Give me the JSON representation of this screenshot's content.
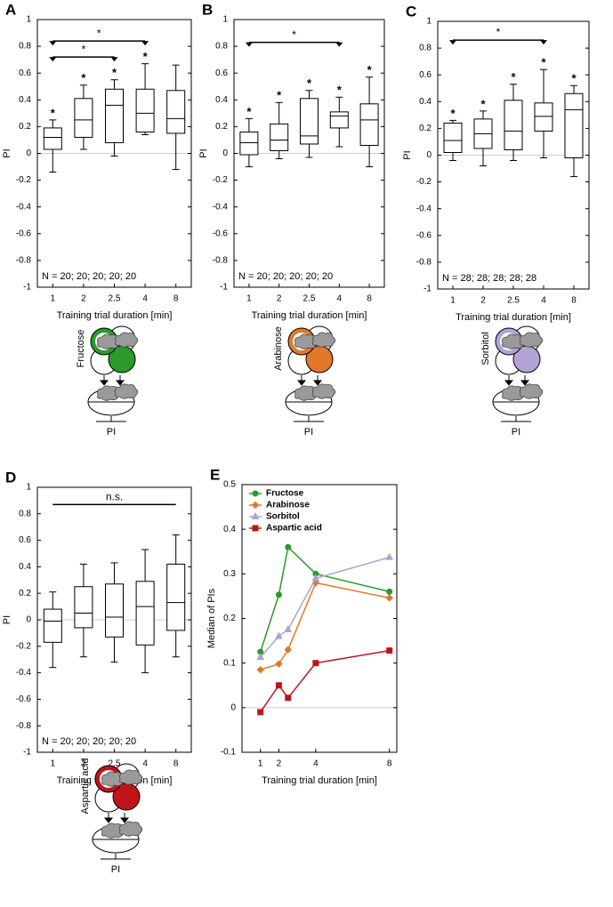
{
  "chart_data": [
    {
      "type": "box",
      "panel_label": "A",
      "ylabel": "PI",
      "xlabel": "Training trial duration [min]",
      "note": "N = 20; 20; 20; 20; 20",
      "categories": [
        "1",
        "2",
        "2.5",
        "4",
        "8"
      ],
      "boxes": [
        {
          "whislo": -0.14,
          "q1": 0.03,
          "med": 0.12,
          "q3": 0.19,
          "whishi": 0.25
        },
        {
          "whislo": 0.03,
          "q1": 0.12,
          "med": 0.25,
          "q3": 0.41,
          "whishi": 0.51
        },
        {
          "whislo": -0.02,
          "q1": 0.08,
          "med": 0.36,
          "q3": 0.48,
          "whishi": 0.55
        },
        {
          "whislo": 0.14,
          "q1": 0.16,
          "med": 0.3,
          "q3": 0.48,
          "whishi": 0.67
        },
        {
          "whislo": -0.12,
          "q1": 0.15,
          "med": 0.26,
          "q3": 0.47,
          "whishi": 0.66
        }
      ],
      "box_labels": [
        "*",
        "*",
        "*",
        "*",
        null
      ],
      "brackets": [
        {
          "from": 0,
          "to": 3,
          "y": 0.84,
          "label": "*"
        },
        {
          "from": 0,
          "to": 2,
          "y": 0.72,
          "label": "*"
        }
      ],
      "ylim": [
        -1,
        1
      ],
      "yticks": [
        -1,
        -0.8,
        -0.6,
        -0.4,
        -0.2,
        0,
        0.2,
        0.4,
        0.6,
        0.8,
        1
      ],
      "zero_line": true,
      "icon_label": "Fructose",
      "icon_caption": "PI",
      "icon_color": "#2a9a2a"
    },
    {
      "type": "box",
      "panel_label": "B",
      "ylabel": "PI",
      "xlabel": "Training trial duration [min]",
      "note": "N = 20; 20; 20; 20; 20",
      "categories": [
        "1",
        "2",
        "2.5",
        "4",
        "8"
      ],
      "boxes": [
        {
          "whislo": -0.1,
          "q1": -0.01,
          "med": 0.08,
          "q3": 0.16,
          "whishi": 0.26
        },
        {
          "whislo": -0.04,
          "q1": 0.02,
          "med": 0.1,
          "q3": 0.22,
          "whishi": 0.38
        },
        {
          "whislo": -0.03,
          "q1": 0.07,
          "med": 0.13,
          "q3": 0.41,
          "whishi": 0.47
        },
        {
          "whislo": 0.05,
          "q1": 0.19,
          "med": 0.28,
          "q3": 0.31,
          "whishi": 0.42
        },
        {
          "whislo": -0.1,
          "q1": 0.06,
          "med": 0.25,
          "q3": 0.37,
          "whishi": 0.57
        }
      ],
      "box_labels": [
        "*",
        "*",
        "*",
        "*",
        "*"
      ],
      "brackets": [
        {
          "from": 0,
          "to": 3,
          "y": 0.83,
          "label": "*"
        }
      ],
      "ylim": [
        -1,
        1
      ],
      "yticks": [
        -1,
        -0.8,
        -0.6,
        -0.4,
        -0.2,
        0,
        0.2,
        0.4,
        0.6,
        0.8,
        1
      ],
      "zero_line": true,
      "icon_label": "Arabinose",
      "icon_caption": "PI",
      "icon_color": "#e0782a"
    },
    {
      "type": "box",
      "panel_label": "C",
      "ylabel": "PI",
      "xlabel": "Training trial duration [min]",
      "note": "N = 28; 28; 28; 28; 28",
      "categories": [
        "1",
        "2",
        "2.5",
        "4",
        "8"
      ],
      "boxes": [
        {
          "whislo": -0.04,
          "q1": 0.02,
          "med": 0.11,
          "q3": 0.24,
          "whishi": 0.26
        },
        {
          "whislo": -0.08,
          "q1": 0.05,
          "med": 0.16,
          "q3": 0.27,
          "whishi": 0.33
        },
        {
          "whislo": -0.04,
          "q1": 0.04,
          "med": 0.18,
          "q3": 0.41,
          "whishi": 0.53
        },
        {
          "whislo": -0.02,
          "q1": 0.18,
          "med": 0.29,
          "q3": 0.39,
          "whishi": 0.64
        },
        {
          "whislo": -0.16,
          "q1": -0.02,
          "med": 0.34,
          "q3": 0.46,
          "whishi": 0.52
        }
      ],
      "box_labels": [
        "*",
        "*",
        "*",
        "*",
        "*"
      ],
      "brackets": [
        {
          "from": 0,
          "to": 3,
          "y": 0.86,
          "label": "*"
        }
      ],
      "ylim": [
        -1,
        1
      ],
      "yticks": [
        -1,
        -0.8,
        -0.6,
        -0.4,
        -0.2,
        0,
        0.2,
        0.4,
        0.6,
        0.8,
        1
      ],
      "zero_line": true,
      "icon_label": "Sorbitol",
      "icon_caption": "PI",
      "icon_color": "#b3a3d6"
    },
    {
      "type": "box",
      "panel_label": "D",
      "ylabel": "PI",
      "xlabel": "Training trial duration [min]",
      "note": "N = 20; 20; 20; 20; 20",
      "categories": [
        "1",
        "2",
        "2.5",
        "4",
        "8"
      ],
      "boxes": [
        {
          "whislo": -0.36,
          "q1": -0.17,
          "med": -0.01,
          "q3": 0.08,
          "whishi": 0.21
        },
        {
          "whislo": -0.28,
          "q1": -0.06,
          "med": 0.05,
          "q3": 0.25,
          "whishi": 0.42
        },
        {
          "whislo": -0.32,
          "q1": -0.13,
          "med": 0.02,
          "q3": 0.27,
          "whishi": 0.43
        },
        {
          "whislo": -0.4,
          "q1": -0.19,
          "med": 0.1,
          "q3": 0.29,
          "whishi": 0.53
        },
        {
          "whislo": -0.28,
          "q1": -0.08,
          "med": 0.13,
          "q3": 0.42,
          "whishi": 0.64
        }
      ],
      "box_labels": [
        null,
        null,
        null,
        null,
        null
      ],
      "brackets": [
        {
          "from": 0,
          "to": 4,
          "y": 0.87,
          "label": "n.s."
        }
      ],
      "ylim": [
        -1,
        1
      ],
      "yticks": [
        -1,
        -0.8,
        -0.6,
        -0.4,
        -0.2,
        0,
        0.2,
        0.4,
        0.6,
        0.8,
        1
      ],
      "zero_line": true,
      "icon_label": "Aspartic acid",
      "icon_caption": "PI",
      "icon_color": "#c0141a"
    },
    {
      "type": "line",
      "panel_label": "E",
      "ylabel": "Median of PIs",
      "xlabel": "Training trial duration [min]",
      "x": [
        1,
        2,
        2.5,
        4,
        8
      ],
      "series": [
        {
          "name": "Fructose",
          "color": "#2a9a2a",
          "marker": "circle",
          "values": [
            0.125,
            0.253,
            0.36,
            0.3,
            0.26
          ]
        },
        {
          "name": "Arabinose",
          "color": "#e0782a",
          "marker": "diamond",
          "values": [
            0.085,
            0.098,
            0.13,
            0.28,
            0.246
          ]
        },
        {
          "name": "Sorbitol",
          "color": "#a9a3d8",
          "marker": "triangle",
          "values": [
            0.113,
            0.16,
            0.175,
            0.29,
            0.337
          ]
        },
        {
          "name": "Aspartic acid",
          "color": "#c0141a",
          "marker": "square",
          "values": [
            -0.01,
            0.05,
            0.022,
            0.1,
            0.128
          ]
        }
      ],
      "xlim": [
        0,
        8.4
      ],
      "xticks": [
        1,
        2,
        4,
        8
      ],
      "ylim": [
        -0.1,
        0.5
      ],
      "yticks": [
        -0.1,
        0,
        0.1,
        0.2,
        0.3,
        0.4,
        0.5
      ],
      "zero_line": true,
      "legend": "top-left"
    }
  ]
}
